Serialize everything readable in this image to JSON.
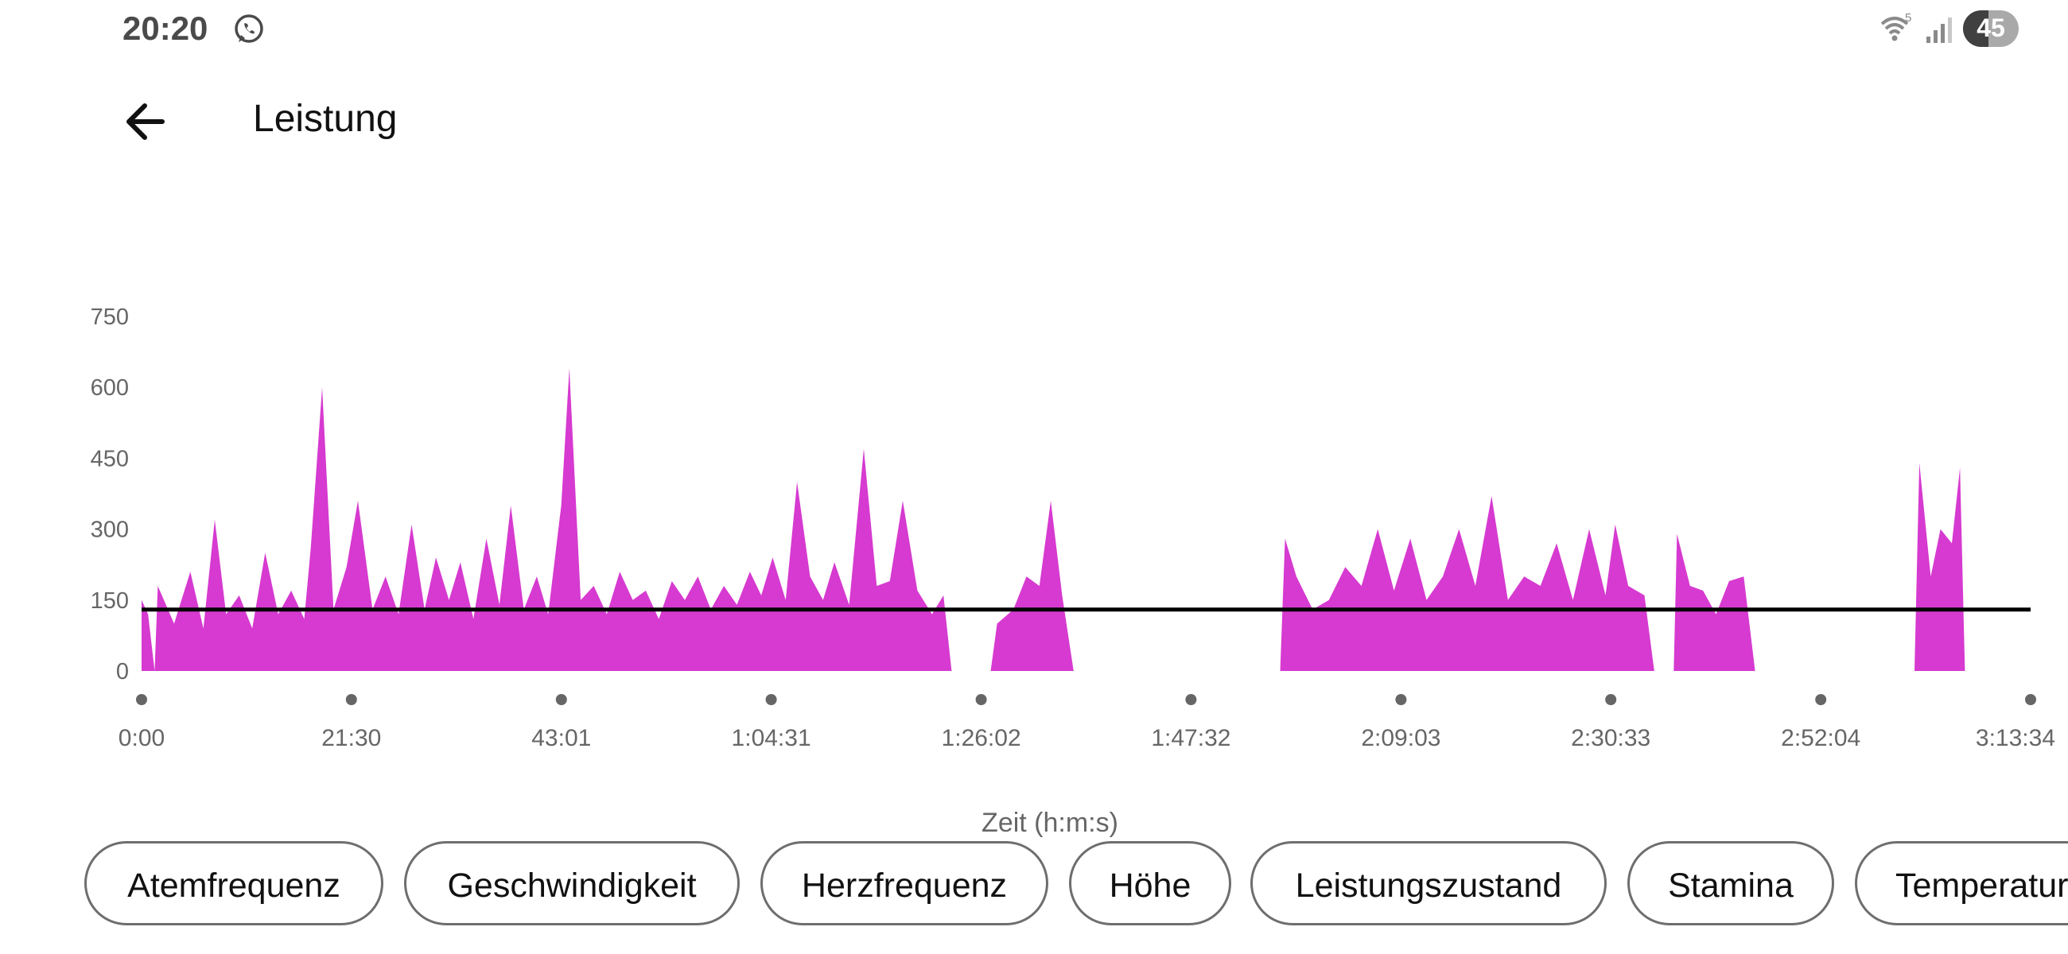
{
  "status_bar": {
    "time": "20:20",
    "battery": "45",
    "battery_level": 0.45,
    "icons": [
      "whatsapp-icon",
      "wifi-icon",
      "signal-icon",
      "battery-icon"
    ]
  },
  "app_bar": {
    "title": "Leistung",
    "back_icon": "arrow-left-icon"
  },
  "colors": {
    "series": "#d63ad0",
    "average_line": "#000000",
    "axis_text": "#666666",
    "tick_dot": "#666666"
  },
  "chart_data": {
    "type": "area",
    "title": "",
    "xlabel": "Zeit (h:m:s)",
    "ylabel": "",
    "x_unit": "seconds",
    "xlim": [
      0,
      11614
    ],
    "ylim": [
      0,
      750
    ],
    "y_ticks": [
      "0",
      "150",
      "300",
      "450",
      "600",
      "750"
    ],
    "x_tick_labels": [
      "0:00",
      "21:30",
      "43:01",
      "1:04:31",
      "1:26:02",
      "1:47:32",
      "2:09:03",
      "2:30:33",
      "2:52:04",
      "3:13:34"
    ],
    "x_tick_values": [
      0,
      1290,
      2581,
      3871,
      5162,
      6452,
      7743,
      9033,
      10324,
      11614
    ],
    "average": 130,
    "grid": false,
    "legend": "none",
    "series": [
      {
        "values": [
          [
            0,
            150
          ],
          [
            40,
            120
          ],
          [
            80,
            0
          ],
          [
            100,
            180
          ],
          [
            200,
            100
          ],
          [
            300,
            210
          ],
          [
            380,
            90
          ],
          [
            450,
            320
          ],
          [
            520,
            120
          ],
          [
            600,
            160
          ],
          [
            680,
            90
          ],
          [
            760,
            250
          ],
          [
            840,
            120
          ],
          [
            920,
            170
          ],
          [
            1000,
            110
          ],
          [
            1040,
            260
          ],
          [
            1110,
            600
          ],
          [
            1180,
            130
          ],
          [
            1260,
            220
          ],
          [
            1330,
            360
          ],
          [
            1420,
            130
          ],
          [
            1500,
            200
          ],
          [
            1580,
            120
          ],
          [
            1660,
            310
          ],
          [
            1740,
            130
          ],
          [
            1810,
            240
          ],
          [
            1890,
            150
          ],
          [
            1960,
            230
          ],
          [
            2040,
            110
          ],
          [
            2120,
            280
          ],
          [
            2200,
            140
          ],
          [
            2270,
            350
          ],
          [
            2350,
            130
          ],
          [
            2430,
            200
          ],
          [
            2500,
            120
          ],
          [
            2580,
            350
          ],
          [
            2630,
            640
          ],
          [
            2700,
            150
          ],
          [
            2780,
            180
          ],
          [
            2860,
            120
          ],
          [
            2940,
            210
          ],
          [
            3020,
            150
          ],
          [
            3100,
            170
          ],
          [
            3180,
            110
          ],
          [
            3260,
            190
          ],
          [
            3340,
            150
          ],
          [
            3420,
            200
          ],
          [
            3500,
            130
          ],
          [
            3580,
            180
          ],
          [
            3660,
            140
          ],
          [
            3740,
            210
          ],
          [
            3810,
            160
          ],
          [
            3880,
            240
          ],
          [
            3960,
            150
          ],
          [
            4030,
            400
          ],
          [
            4110,
            200
          ],
          [
            4190,
            150
          ],
          [
            4260,
            230
          ],
          [
            4350,
            140
          ],
          [
            4440,
            470
          ],
          [
            4520,
            180
          ],
          [
            4600,
            190
          ],
          [
            4680,
            360
          ],
          [
            4770,
            170
          ],
          [
            4860,
            120
          ],
          [
            4930,
            160
          ],
          [
            4980,
            0
          ],
          [
            5220,
            0
          ],
          [
            5260,
            100
          ],
          [
            5360,
            130
          ],
          [
            5440,
            200
          ],
          [
            5520,
            180
          ],
          [
            5590,
            360
          ],
          [
            5660,
            160
          ],
          [
            5730,
            0
          ],
          [
            7000,
            0
          ],
          [
            7030,
            280
          ],
          [
            7100,
            200
          ],
          [
            7200,
            130
          ],
          [
            7300,
            150
          ],
          [
            7400,
            220
          ],
          [
            7500,
            180
          ],
          [
            7600,
            300
          ],
          [
            7700,
            170
          ],
          [
            7800,
            280
          ],
          [
            7900,
            150
          ],
          [
            8000,
            200
          ],
          [
            8100,
            300
          ],
          [
            8200,
            180
          ],
          [
            8300,
            370
          ],
          [
            8400,
            150
          ],
          [
            8500,
            200
          ],
          [
            8600,
            180
          ],
          [
            8700,
            270
          ],
          [
            8800,
            150
          ],
          [
            8900,
            300
          ],
          [
            9000,
            160
          ],
          [
            9060,
            310
          ],
          [
            9140,
            180
          ],
          [
            9240,
            160
          ],
          [
            9300,
            0
          ],
          [
            9420,
            0
          ],
          [
            9440,
            290
          ],
          [
            9520,
            180
          ],
          [
            9600,
            170
          ],
          [
            9680,
            120
          ],
          [
            9760,
            190
          ],
          [
            9850,
            200
          ],
          [
            9920,
            0
          ],
          [
            10900,
            0
          ],
          [
            10930,
            440
          ],
          [
            11000,
            200
          ],
          [
            11060,
            300
          ],
          [
            11130,
            270
          ],
          [
            11180,
            430
          ],
          [
            11210,
            0
          ]
        ]
      }
    ]
  },
  "filter_chips": [
    "Atemfrequenz",
    "Geschwindigkeit",
    "Herzfrequenz",
    "Höhe",
    "Leistungszustand",
    "Stamina",
    "Temperatur"
  ]
}
